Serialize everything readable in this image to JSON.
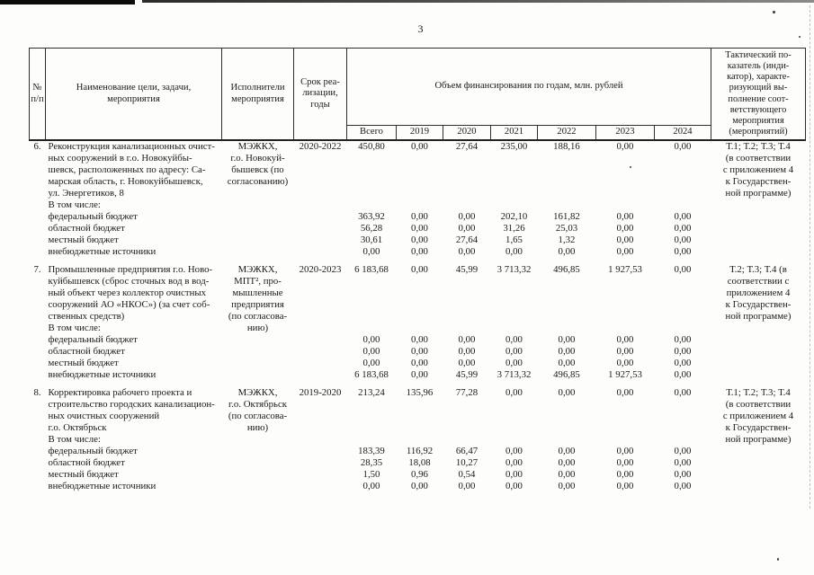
{
  "colors": {
    "paper": "#fdfdfc",
    "ink": "#1a1a1a"
  },
  "page": {
    "number": "3"
  },
  "table": {
    "header": {
      "col_num": "№\nп/п",
      "col_name": "Наименование цели, задачи,\nмероприятия",
      "col_executor": "Исполнители\nмероприятия",
      "col_term": "Срок реа-\nлизации,\nгоды",
      "col_funding": "Объем финансирования по годам, млн. рублей",
      "col_indicator": "Тактический по-\nказатель (инди-\nкатор), характе-\nризующий вы-\nполнение соот-\nветствующего\nмероприятия\n(мероприятий)",
      "years": [
        "Всего",
        "2019",
        "2020",
        "2021",
        "2022",
        "2023",
        "2024"
      ]
    },
    "rows": [
      {
        "num": "6.",
        "name": "Реконструкция канализационных очист-\nных сооружений в г.о. Новокуйбы-\nшевск, расположенных по адресу: Са-\nмарская область, г. Новокуйбышевск,\nул. Энергетиков, 8",
        "executor": "МЭЖКХ,\nг.о. Новокуй-\nбышевск (по\nсогласованию)",
        "term": "2020-2022",
        "values": [
          "450,80",
          "0,00",
          "27,64",
          "235,00",
          "188,16",
          "0,00",
          "0,00"
        ],
        "indicator": "Т.1; Т.2; Т.3; Т.4\n(в соответствии\nс приложением 4\nк Государствен-\nной программе)",
        "including_label": "В том числе:",
        "sub_rows": [
          {
            "label": "федеральный бюджет",
            "values": [
              "363,92",
              "0,00",
              "0,00",
              "202,10",
              "161,82",
              "0,00",
              "0,00"
            ]
          },
          {
            "label": "областной бюджет",
            "values": [
              "56,28",
              "0,00",
              "0,00",
              "31,26",
              "25,03",
              "0,00",
              "0,00"
            ]
          },
          {
            "label": "местный бюджет",
            "values": [
              "30,61",
              "0,00",
              "27,64",
              "1,65",
              "1,32",
              "0,00",
              "0,00"
            ]
          },
          {
            "label": "внебюджетные источники",
            "values": [
              "0,00",
              "0,00",
              "0,00",
              "0,00",
              "0,00",
              "0,00",
              "0,00"
            ]
          }
        ]
      },
      {
        "num": "7.",
        "name": "Промышленные предприятия г.о. Ново-\nкуйбышевск (сброс сточных вод в вод-\nный объект через коллектор очистных\nсооружений АО «НКОС») (за счет соб-\nственных средств)",
        "executor": "МЭЖКХ,\nМПТ², про-\nмышленные\nпредприятия\n(по согласова-\nнию)",
        "term": "2020-2023",
        "values": [
          "6 183,68",
          "0,00",
          "45,99",
          "3 713,32",
          "496,85",
          "1 927,53",
          "0,00"
        ],
        "indicator": "Т.2; Т.3; Т.4 (в\nсоответствии с\nприложением 4\nк Государствен-\nной программе)",
        "including_label": "В том числе:",
        "sub_rows": [
          {
            "label": "федеральный бюджет",
            "values": [
              "0,00",
              "0,00",
              "0,00",
              "0,00",
              "0,00",
              "0,00",
              "0,00"
            ]
          },
          {
            "label": "областной бюджет",
            "values": [
              "0,00",
              "0,00",
              "0,00",
              "0,00",
              "0,00",
              "0,00",
              "0,00"
            ]
          },
          {
            "label": "местный бюджет",
            "values": [
              "0,00",
              "0,00",
              "0,00",
              "0,00",
              "0,00",
              "0,00",
              "0,00"
            ]
          },
          {
            "label": "внебюджетные источники",
            "values": [
              "6 183,68",
              "0,00",
              "45,99",
              "3 713,32",
              "496,85",
              "1 927,53",
              "0,00"
            ]
          }
        ]
      },
      {
        "num": "8.",
        "name": "Корректировка рабочего проекта и\nстроительство городских канализацион-\nных очистных сооружений\nг.о. Октябрьск",
        "executor": "МЭЖКХ,\nг.о. Октябрьск\n(по согласова-\nнию)",
        "term": "2019-2020",
        "values": [
          "213,24",
          "135,96",
          "77,28",
          "0,00",
          "0,00",
          "0,00",
          "0,00"
        ],
        "indicator": "Т.1; Т.2; Т.3; Т.4\n(в соответствии\nс приложением 4\nк Государствен-\nной программе)",
        "including_label": "В том числе:",
        "sub_rows": [
          {
            "label": "федеральный бюджет",
            "values": [
              "183,39",
              "116,92",
              "66,47",
              "0,00",
              "0,00",
              "0,00",
              "0,00"
            ]
          },
          {
            "label": "областной бюджет",
            "values": [
              "28,35",
              "18,08",
              "10,27",
              "0,00",
              "0,00",
              "0,00",
              "0,00"
            ]
          },
          {
            "label": "местный бюджет",
            "values": [
              "1,50",
              "0,96",
              "0,54",
              "0,00",
              "0,00",
              "0,00",
              "0,00"
            ]
          },
          {
            "label": "внебюджетные источники",
            "values": [
              "0,00",
              "0,00",
              "0,00",
              "0,00",
              "0,00",
              "0,00",
              "0,00"
            ]
          }
        ]
      }
    ]
  }
}
